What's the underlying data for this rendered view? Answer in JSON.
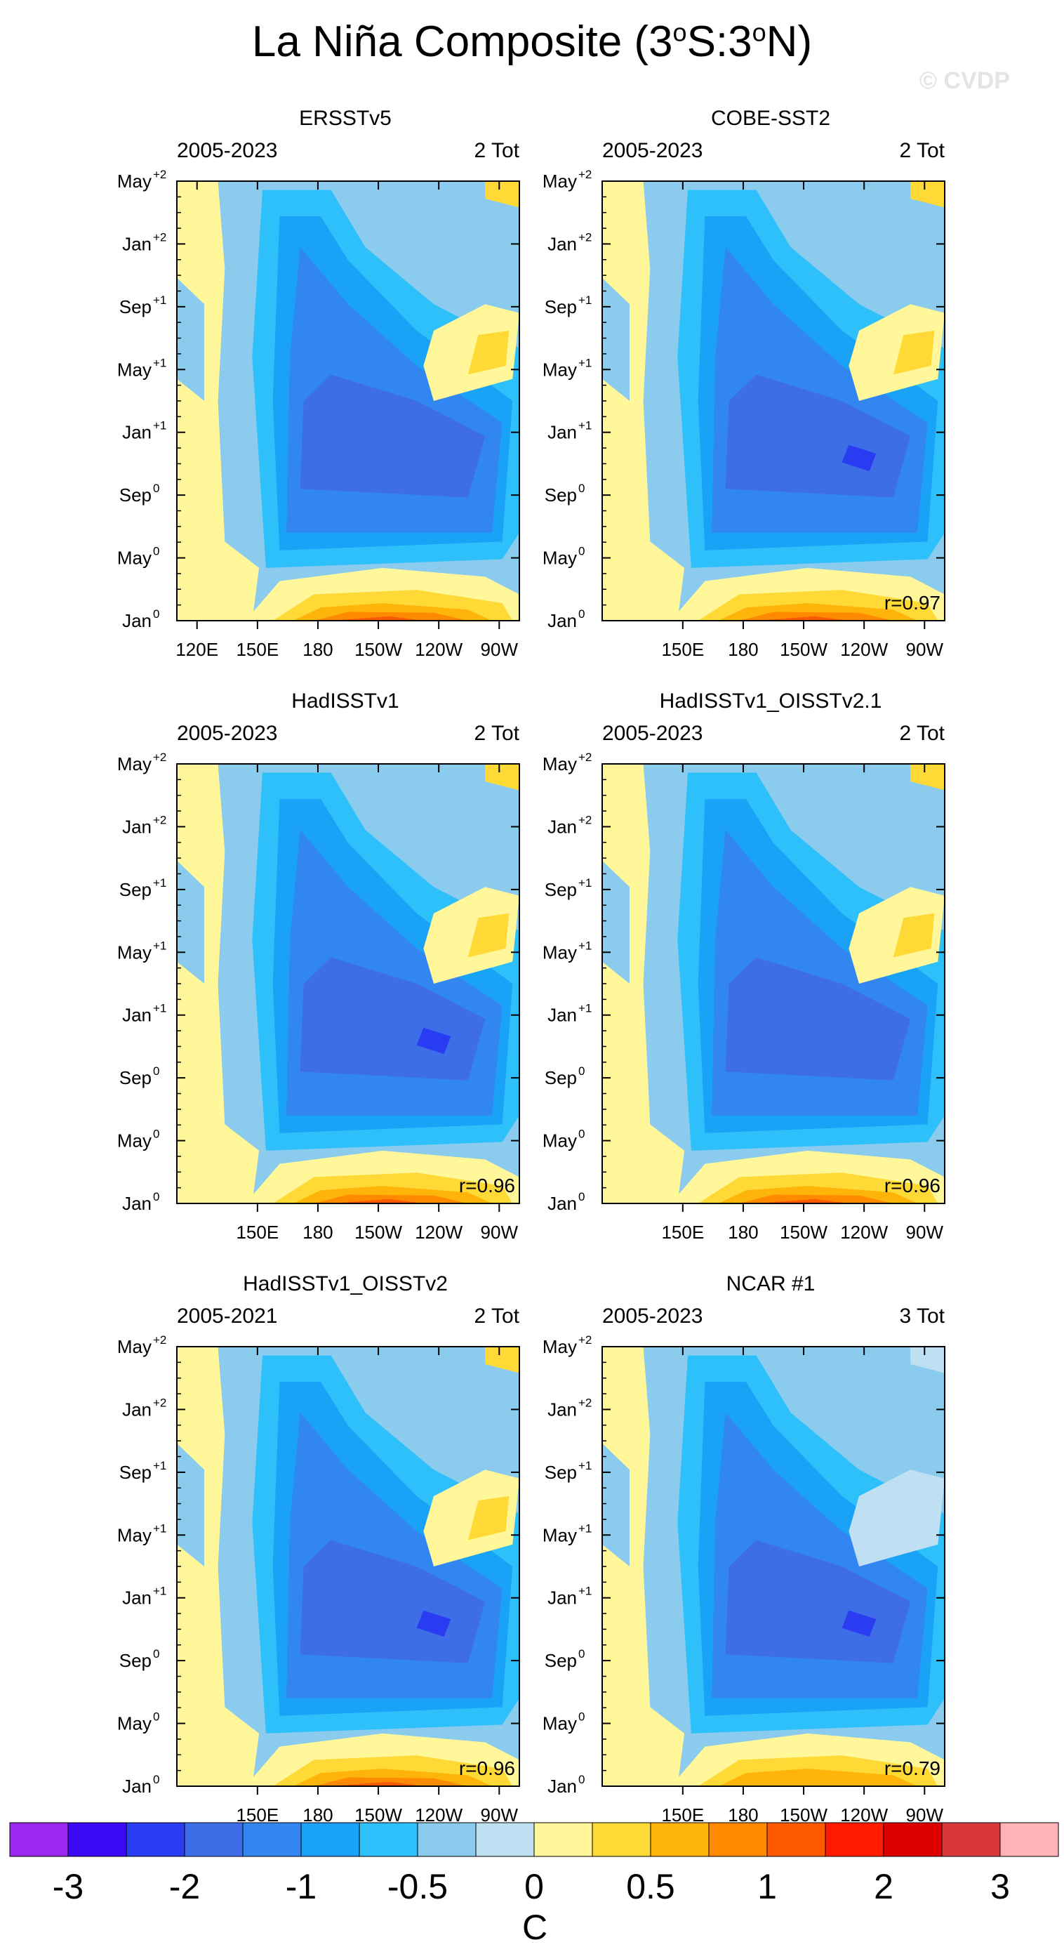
{
  "title": "La Niña Composite (3°S:3°N)",
  "title_parts": {
    "a": "La Niña Composite (3",
    "b": "o",
    "c": "S:3",
    "d": "o",
    "e": "N)"
  },
  "watermark": "© CVDP",
  "colorbar": {
    "unit": "C",
    "labels": [
      "-3",
      "-2",
      "-1",
      "-0.5",
      "0",
      "0.5",
      "1",
      "2",
      "3"
    ],
    "colors": [
      "#9a28f0",
      "#3a0af5",
      "#2a3cf2",
      "#3d6ee8",
      "#3286f2",
      "#1aa2f6",
      "#2ec0fa",
      "#8acbee",
      "#bfe0f2",
      "#fff799",
      "#ffd935",
      "#ffb40a",
      "#ff8a00",
      "#ff5a00",
      "#ff1a00",
      "#dd0000",
      "#d8363b",
      "#ffb3b8"
    ]
  },
  "chart_data": [
    {
      "type": "heatmap",
      "title": "ERSSTv5",
      "period": "2005-2023",
      "count": "2 Tot",
      "correlation": "",
      "x_ticks": [
        "120E",
        "150E",
        "180",
        "150W",
        "120W",
        "90W"
      ],
      "y_ticks": [
        [
          "Jan",
          "0"
        ],
        [
          "May",
          "0"
        ],
        [
          "Sep",
          "0"
        ],
        [
          "Jan",
          "+1"
        ],
        [
          "May",
          "+1"
        ],
        [
          "Sep",
          "+1"
        ],
        [
          "Jan",
          "+2"
        ],
        [
          "May",
          "+2"
        ]
      ]
    },
    {
      "type": "heatmap",
      "title": "COBE-SST2",
      "period": "2005-2023",
      "count": "2 Tot",
      "correlation": "r=0.97",
      "x_ticks": [
        "150E",
        "180",
        "150W",
        "120W",
        "90W"
      ],
      "y_ticks": [
        [
          "Jan",
          "0"
        ],
        [
          "May",
          "0"
        ],
        [
          "Sep",
          "0"
        ],
        [
          "Jan",
          "+1"
        ],
        [
          "May",
          "+1"
        ],
        [
          "Sep",
          "+1"
        ],
        [
          "Jan",
          "+2"
        ],
        [
          "May",
          "+2"
        ]
      ]
    },
    {
      "type": "heatmap",
      "title": "HadISSTv1",
      "period": "2005-2023",
      "count": "2 Tot",
      "correlation": "r=0.96",
      "x_ticks": [
        "150E",
        "180",
        "150W",
        "120W",
        "90W"
      ],
      "y_ticks": [
        [
          "Jan",
          "0"
        ],
        [
          "May",
          "0"
        ],
        [
          "Sep",
          "0"
        ],
        [
          "Jan",
          "+1"
        ],
        [
          "May",
          "+1"
        ],
        [
          "Sep",
          "+1"
        ],
        [
          "Jan",
          "+2"
        ],
        [
          "May",
          "+2"
        ]
      ]
    },
    {
      "type": "heatmap",
      "title": "HadISSTv1_OISSTv2.1",
      "period": "2005-2023",
      "count": "2 Tot",
      "correlation": "r=0.96",
      "x_ticks": [
        "150E",
        "180",
        "150W",
        "120W",
        "90W"
      ],
      "y_ticks": [
        [
          "Jan",
          "0"
        ],
        [
          "May",
          "0"
        ],
        [
          "Sep",
          "0"
        ],
        [
          "Jan",
          "+1"
        ],
        [
          "May",
          "+1"
        ],
        [
          "Sep",
          "+1"
        ],
        [
          "Jan",
          "+2"
        ],
        [
          "May",
          "+2"
        ]
      ]
    },
    {
      "type": "heatmap",
      "title": "HadISSTv1_OISSTv2",
      "period": "2005-2021",
      "count": "2 Tot",
      "correlation": "r=0.96",
      "x_ticks": [
        "150E",
        "180",
        "150W",
        "120W",
        "90W"
      ],
      "y_ticks": [
        [
          "Jan",
          "0"
        ],
        [
          "May",
          "0"
        ],
        [
          "Sep",
          "0"
        ],
        [
          "Jan",
          "+1"
        ],
        [
          "May",
          "+1"
        ],
        [
          "Sep",
          "+1"
        ],
        [
          "Jan",
          "+2"
        ],
        [
          "May",
          "+2"
        ]
      ]
    },
    {
      "type": "heatmap",
      "title": "NCAR #1",
      "period": "2005-2023",
      "count": "3 Tot",
      "correlation": "r=0.79",
      "x_ticks": [
        "150E",
        "180",
        "150W",
        "120W",
        "90W"
      ],
      "y_ticks": [
        [
          "Jan",
          "0"
        ],
        [
          "May",
          "0"
        ],
        [
          "Sep",
          "0"
        ],
        [
          "Jan",
          "+1"
        ],
        [
          "May",
          "+1"
        ],
        [
          "Sep",
          "+1"
        ],
        [
          "Jan",
          "+2"
        ],
        [
          "May",
          "+2"
        ]
      ]
    }
  ]
}
